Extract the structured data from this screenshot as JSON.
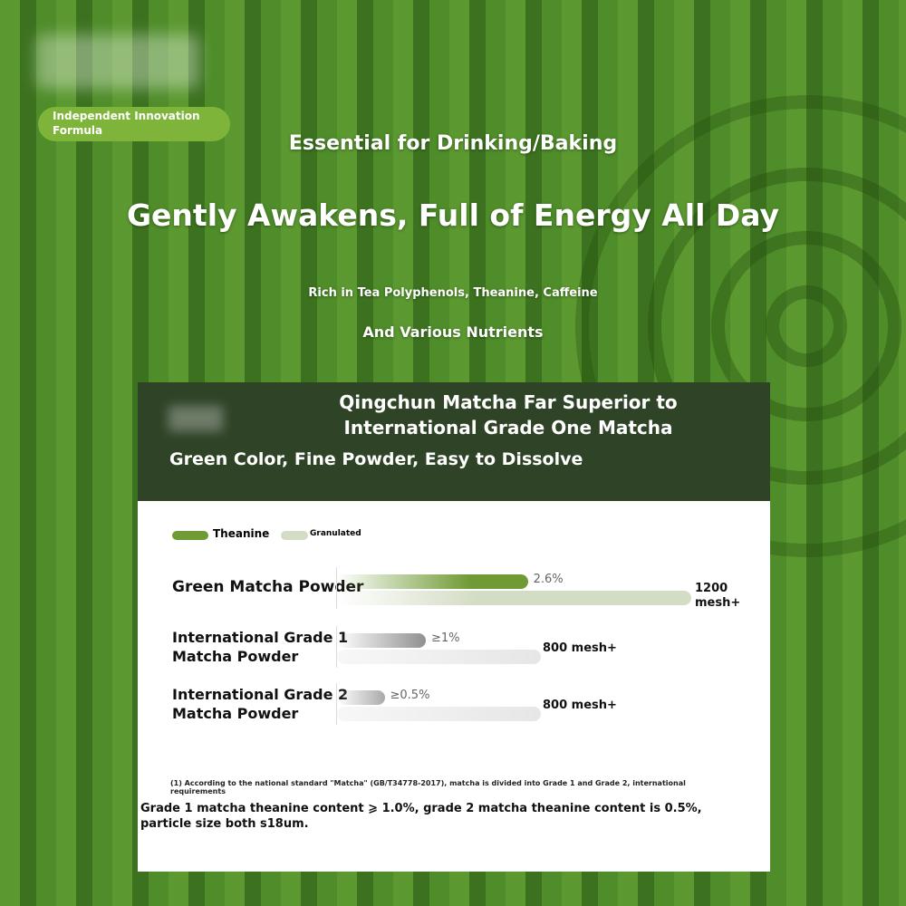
{
  "badge": {
    "text": "Independent Innovation Formula"
  },
  "headline": {
    "sub": "Essential for Drinking/Baking",
    "title": "Gently Awakens, Full of Energy All Day",
    "line1": "Rich in Tea Polyphenols, Theanine, Caffeine",
    "line2": "And Various Nutrients"
  },
  "card": {
    "title1": "Qingchun Matcha Far Superior to",
    "title2": "International Grade One Matcha",
    "subtitle": "Green Color, Fine Powder, Easy to Dissolve"
  },
  "chart_data": {
    "type": "bar",
    "orientation": "horizontal",
    "legend": [
      {
        "name": "Theanine",
        "color": "#6f9a34"
      },
      {
        "name": "Granulated",
        "color": "#d3dcc4"
      }
    ],
    "legend_placement": "top-left",
    "categories": [
      "Green Matcha Powder",
      "International Grade 1 Matcha Powder",
      "International Grade 2 Matcha Powder"
    ],
    "category_lines": [
      [
        "Green Matcha Powder"
      ],
      [
        "International Grade 1",
        "Matcha Powder"
      ],
      [
        "International Grade 2",
        "Matcha Powder"
      ]
    ],
    "series": [
      {
        "name": "Theanine",
        "values": [
          2.6,
          1,
          0.5
        ],
        "labels": [
          "2.6%",
          "≥1%",
          "≥0.5%"
        ]
      },
      {
        "name": "Granulated",
        "values": [
          1200,
          800,
          800
        ],
        "labels": [
          "1200 mesh+",
          "800 mesh+",
          "800 mesh+"
        ]
      }
    ]
  },
  "footnote": {
    "small": "(1) According to the national standard \"Matcha\" (GB/T34778-2017), matcha is divided into Grade 1 and Grade 2, international requirements",
    "main": "Grade 1 matcha theanine content ⩾ 1.0%, grade 2 matcha theanine content is 0.5%, particle size both s18um."
  }
}
